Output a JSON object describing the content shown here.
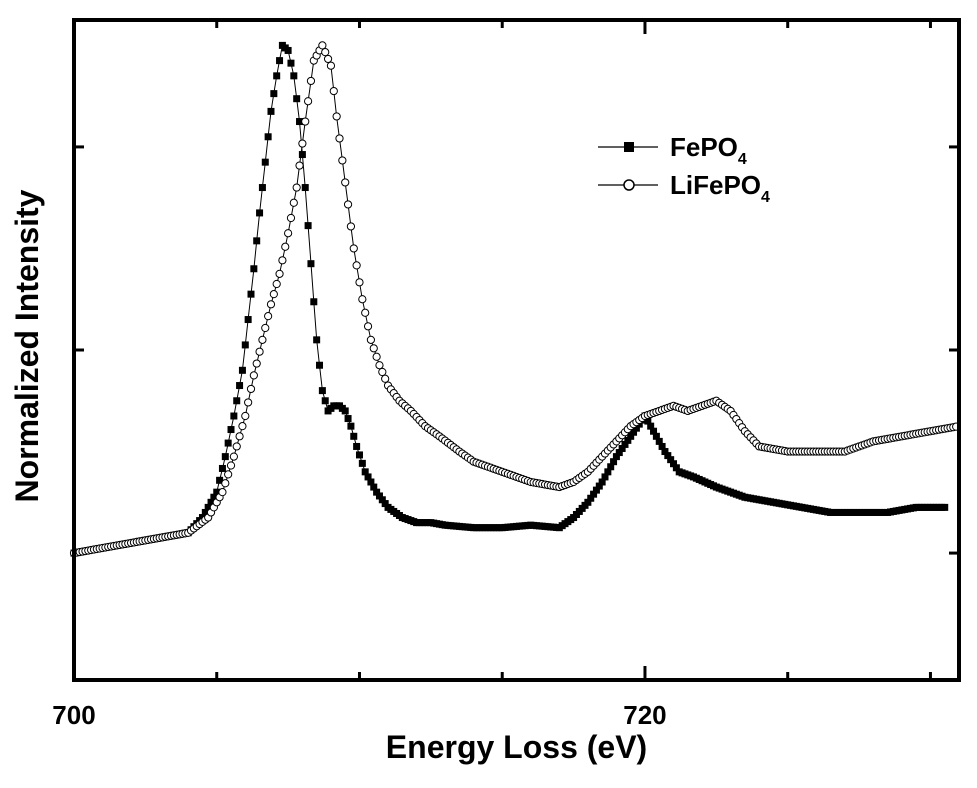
{
  "chart_data": {
    "type": "scatter",
    "title": "",
    "xlabel": "Energy Loss (eV)",
    "ylabel": "Normalized Intensity",
    "xlim": [
      700,
      731
    ],
    "ylim": [
      -0.25,
      1.05
    ],
    "x_tick_labels": [
      "700",
      "720"
    ],
    "x_ticks": [
      700,
      705,
      710,
      715,
      720,
      725,
      730
    ],
    "x_labeled_ticks": [
      700,
      720
    ],
    "y_ticks": [
      0.0,
      0.4,
      0.8
    ],
    "y_tick_labels_visible": false,
    "grid": false,
    "legend_position": "top-right",
    "series": [
      {
        "name": "FePO4",
        "name_main": "FePO",
        "name_sub": "4",
        "marker": "filled-square",
        "color": "#000000",
        "x": [
          700.0,
          701.0,
          702.0,
          703.0,
          704.0,
          704.5,
          705.0,
          705.3,
          705.6,
          705.9,
          706.1,
          706.3,
          706.5,
          706.7,
          706.9,
          707.1,
          707.3,
          707.5,
          707.7,
          707.9,
          708.1,
          708.3,
          708.5,
          708.7,
          708.9,
          709.1,
          709.3,
          709.5,
          709.7,
          709.9,
          710.2,
          710.6,
          711.0,
          711.5,
          712.0,
          712.5,
          713.0,
          714.0,
          715.0,
          716.0,
          717.0,
          717.5,
          718.0,
          718.5,
          719.0,
          719.5,
          720.0,
          720.3,
          720.7,
          721.2,
          721.7,
          722.5,
          723.5,
          724.5,
          725.5,
          726.5,
          727.5,
          728.5,
          729.5,
          730.5
        ],
        "y": [
          0.0,
          0.01,
          0.02,
          0.03,
          0.04,
          0.07,
          0.12,
          0.19,
          0.27,
          0.36,
          0.46,
          0.56,
          0.67,
          0.77,
          0.87,
          0.94,
          1.0,
          0.99,
          0.94,
          0.85,
          0.72,
          0.57,
          0.42,
          0.32,
          0.28,
          0.29,
          0.29,
          0.28,
          0.25,
          0.21,
          0.16,
          0.12,
          0.09,
          0.07,
          0.06,
          0.06,
          0.055,
          0.05,
          0.05,
          0.055,
          0.05,
          0.07,
          0.1,
          0.14,
          0.19,
          0.23,
          0.27,
          0.24,
          0.2,
          0.16,
          0.15,
          0.13,
          0.11,
          0.1,
          0.09,
          0.08,
          0.08,
          0.08,
          0.09,
          0.09
        ]
      },
      {
        "name": "LiFePO4",
        "name_main": "LiFePO",
        "name_sub": "4",
        "marker": "open-circle",
        "color": "#000000",
        "x": [
          700.0,
          701.0,
          702.0,
          703.0,
          704.0,
          704.7,
          705.2,
          705.6,
          706.0,
          706.3,
          706.6,
          706.9,
          707.2,
          707.5,
          707.8,
          708.1,
          708.4,
          708.7,
          709.0,
          709.2,
          709.5,
          709.8,
          710.1,
          710.4,
          710.7,
          711.0,
          711.4,
          711.8,
          712.3,
          712.8,
          713.5,
          714.0,
          715.0,
          716.0,
          717.0,
          717.5,
          718.0,
          718.5,
          719.0,
          719.5,
          720.0,
          720.5,
          721.0,
          721.5,
          722.0,
          722.5,
          723.0,
          723.5,
          724.0,
          725.0,
          726.0,
          727.0,
          728.0,
          729.0,
          730.0,
          731.0
        ],
        "y": [
          0.0,
          0.01,
          0.02,
          0.03,
          0.04,
          0.07,
          0.12,
          0.19,
          0.27,
          0.35,
          0.42,
          0.49,
          0.55,
          0.63,
          0.72,
          0.85,
          0.97,
          1.0,
          0.96,
          0.86,
          0.73,
          0.6,
          0.5,
          0.42,
          0.37,
          0.33,
          0.3,
          0.28,
          0.25,
          0.23,
          0.2,
          0.18,
          0.16,
          0.14,
          0.13,
          0.14,
          0.16,
          0.19,
          0.22,
          0.25,
          0.27,
          0.28,
          0.29,
          0.28,
          0.29,
          0.3,
          0.28,
          0.24,
          0.21,
          0.2,
          0.2,
          0.2,
          0.22,
          0.23,
          0.24,
          0.25
        ]
      }
    ]
  }
}
